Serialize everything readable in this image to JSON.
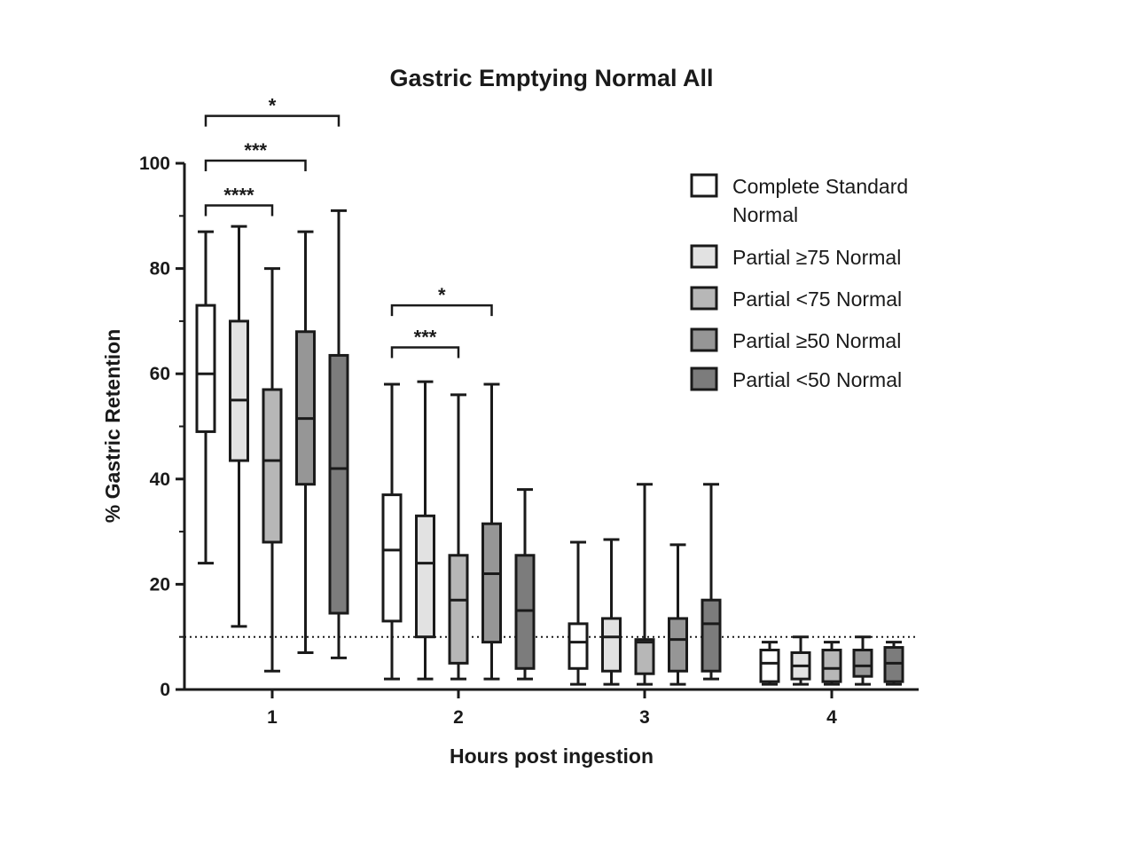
{
  "chart_data": {
    "type": "box",
    "title": "Gastric Emptying Normal All",
    "xlabel": "Hours post ingestion",
    "ylabel": "% Gastric Retention",
    "categories": [
      "1",
      "2",
      "3",
      "4"
    ],
    "ylim": [
      0,
      100
    ],
    "yticks": [
      "0",
      "20",
      "40",
      "60",
      "80",
      "100"
    ],
    "reference_line": {
      "y": 10,
      "style": "dotted"
    },
    "legend_position": "top-right",
    "series": [
      {
        "name": "Complete Standard Normal",
        "line1": "Complete Standard",
        "line2": "Normal",
        "color": "#ffffff",
        "boxes": [
          {
            "min": 24,
            "q1": 49,
            "median": 60,
            "q3": 73,
            "max": 87
          },
          {
            "min": 2,
            "q1": 13,
            "median": 26.5,
            "q3": 37,
            "max": 58
          },
          {
            "min": 1,
            "q1": 4,
            "median": 9,
            "q3": 12.5,
            "max": 28
          },
          {
            "min": 1,
            "q1": 1.5,
            "median": 5,
            "q3": 7.5,
            "max": 9
          }
        ]
      },
      {
        "name": "Partial ≥75 Normal",
        "line1": "Partial ≥75 Normal",
        "line2": "",
        "color": "#e2e2e2",
        "boxes": [
          {
            "min": 12,
            "q1": 43.5,
            "median": 55,
            "q3": 70,
            "max": 88
          },
          {
            "min": 2,
            "q1": 10,
            "median": 24,
            "q3": 33,
            "max": 58.5
          },
          {
            "min": 1,
            "q1": 3.5,
            "median": 10,
            "q3": 13.5,
            "max": 28.5
          },
          {
            "min": 1,
            "q1": 2,
            "median": 4.5,
            "q3": 7,
            "max": 10
          }
        ]
      },
      {
        "name": "Partial <75 Normal",
        "line1": "Partial <75 Normal",
        "line2": "",
        "color": "#b7b7b7",
        "boxes": [
          {
            "min": 3.5,
            "q1": 28,
            "median": 43.5,
            "q3": 57,
            "max": 80
          },
          {
            "min": 2,
            "q1": 5,
            "median": 17,
            "q3": 25.5,
            "max": 56
          },
          {
            "min": 1,
            "q1": 3,
            "median": 9,
            "q3": 9.5,
            "max": 39
          },
          {
            "min": 1,
            "q1": 1.5,
            "median": 4,
            "q3": 7.5,
            "max": 9
          }
        ]
      },
      {
        "name": "Partial ≥50 Normal",
        "line1": "Partial ≥50 Normal",
        "line2": "",
        "color": "#969696",
        "boxes": [
          {
            "min": 7,
            "q1": 39,
            "median": 51.5,
            "q3": 68,
            "max": 87
          },
          {
            "min": 2,
            "q1": 9,
            "median": 22,
            "q3": 31.5,
            "max": 58
          },
          {
            "min": 1,
            "q1": 3.5,
            "median": 9.5,
            "q3": 13.5,
            "max": 27.5
          },
          {
            "min": 1,
            "q1": 2.5,
            "median": 4.5,
            "q3": 7.5,
            "max": 10
          }
        ]
      },
      {
        "name": "Partial <50 Normal",
        "line1": "Partial <50 Normal",
        "line2": "",
        "color": "#7c7c7c",
        "boxes": [
          {
            "min": 6,
            "q1": 14.5,
            "median": 42,
            "q3": 63.5,
            "max": 91
          },
          {
            "min": 2,
            "q1": 4,
            "median": 15,
            "q3": 25.5,
            "max": 38
          },
          {
            "min": 2,
            "q1": 3.5,
            "median": 12.5,
            "q3": 17,
            "max": 39
          },
          {
            "min": 1,
            "q1": 1.5,
            "median": 5,
            "q3": 8,
            "max": 9
          }
        ]
      }
    ],
    "annotations": [
      {
        "category": 0,
        "from_series": 0,
        "to_series": 2,
        "text": "****",
        "y": 92
      },
      {
        "category": 0,
        "from_series": 0,
        "to_series": 3,
        "text": "***",
        "y": 100.5
      },
      {
        "category": 0,
        "from_series": 0,
        "to_series": 4,
        "text": "*",
        "y": 109
      },
      {
        "category": 1,
        "from_series": 0,
        "to_series": 2,
        "text": "***",
        "y": 65
      },
      {
        "category": 1,
        "from_series": 0,
        "to_series": 3,
        "text": "*",
        "y": 73
      }
    ]
  }
}
